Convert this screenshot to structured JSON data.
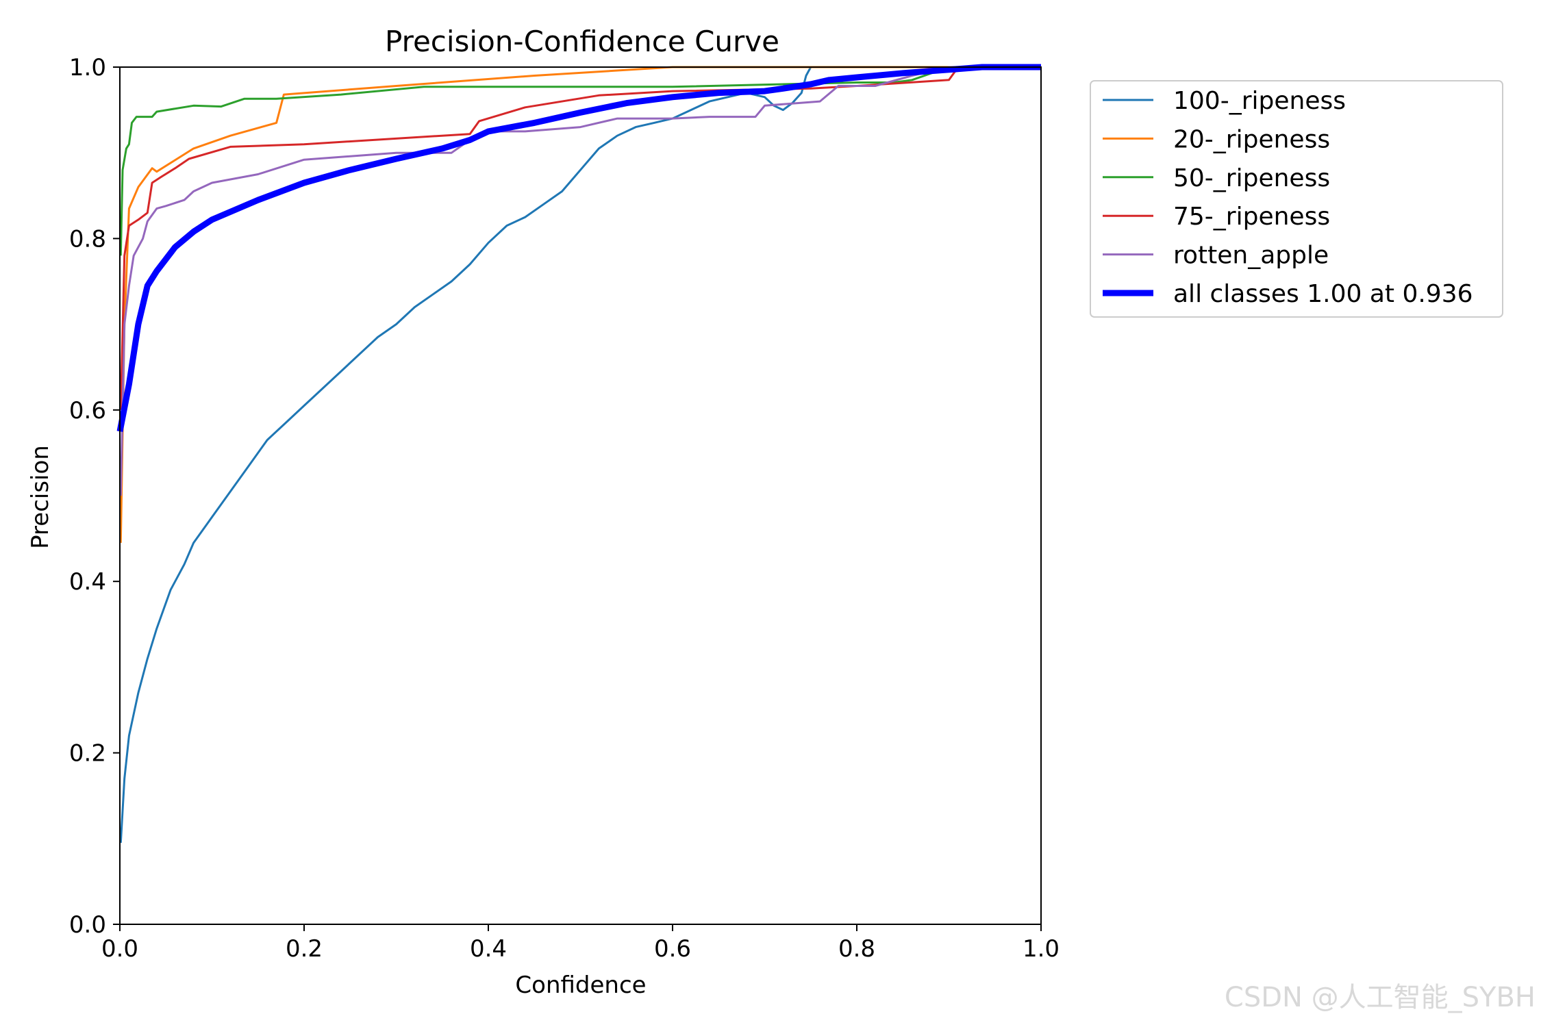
{
  "watermark": "CSDN @人工智能_SYBH",
  "chart_data": {
    "type": "line",
    "title": "Precision-Confidence Curve",
    "xlabel": "Confidence",
    "ylabel": "Precision",
    "xlim": [
      0,
      1
    ],
    "ylim": [
      0,
      1
    ],
    "xticks": [
      0.0,
      0.2,
      0.4,
      0.6,
      0.8,
      1.0
    ],
    "yticks": [
      0.0,
      0.2,
      0.4,
      0.6,
      0.8,
      1.0
    ],
    "xtick_labels": [
      "0.0",
      "0.2",
      "0.4",
      "0.6",
      "0.8",
      "1.0"
    ],
    "ytick_labels": [
      "0.0",
      "0.2",
      "0.4",
      "0.6",
      "0.8",
      "1.0"
    ],
    "grid": false,
    "legend_position": "outside-right-top",
    "series": [
      {
        "name": "100-_ripeness",
        "color": "#1f77b4",
        "width": 3,
        "points": [
          [
            0.001,
            0.095
          ],
          [
            0.005,
            0.17
          ],
          [
            0.01,
            0.22
          ],
          [
            0.02,
            0.27
          ],
          [
            0.03,
            0.31
          ],
          [
            0.04,
            0.345
          ],
          [
            0.055,
            0.39
          ],
          [
            0.07,
            0.42
          ],
          [
            0.08,
            0.445
          ],
          [
            0.1,
            0.475
          ],
          [
            0.12,
            0.505
          ],
          [
            0.14,
            0.535
          ],
          [
            0.16,
            0.565
          ],
          [
            0.18,
            0.585
          ],
          [
            0.2,
            0.605
          ],
          [
            0.22,
            0.625
          ],
          [
            0.24,
            0.645
          ],
          [
            0.26,
            0.665
          ],
          [
            0.28,
            0.685
          ],
          [
            0.3,
            0.7
          ],
          [
            0.32,
            0.72
          ],
          [
            0.34,
            0.735
          ],
          [
            0.36,
            0.75
          ],
          [
            0.38,
            0.77
          ],
          [
            0.4,
            0.795
          ],
          [
            0.42,
            0.815
          ],
          [
            0.44,
            0.825
          ],
          [
            0.46,
            0.84
          ],
          [
            0.48,
            0.855
          ],
          [
            0.5,
            0.88
          ],
          [
            0.52,
            0.905
          ],
          [
            0.54,
            0.92
          ],
          [
            0.56,
            0.93
          ],
          [
            0.58,
            0.935
          ],
          [
            0.6,
            0.94
          ],
          [
            0.62,
            0.95
          ],
          [
            0.64,
            0.96
          ],
          [
            0.66,
            0.965
          ],
          [
            0.68,
            0.97
          ],
          [
            0.7,
            0.965
          ],
          [
            0.71,
            0.955
          ],
          [
            0.72,
            0.95
          ],
          [
            0.73,
            0.958
          ],
          [
            0.74,
            0.97
          ],
          [
            0.745,
            0.99
          ],
          [
            0.75,
            1.0
          ],
          [
            1.0,
            1.0
          ]
        ]
      },
      {
        "name": "20-_ripeness",
        "color": "#ff7f0e",
        "width": 3,
        "points": [
          [
            0.001,
            0.445
          ],
          [
            0.005,
            0.7
          ],
          [
            0.01,
            0.835
          ],
          [
            0.02,
            0.86
          ],
          [
            0.035,
            0.882
          ],
          [
            0.04,
            0.878
          ],
          [
            0.08,
            0.905
          ],
          [
            0.12,
            0.92
          ],
          [
            0.17,
            0.935
          ],
          [
            0.178,
            0.968
          ],
          [
            0.3,
            0.978
          ],
          [
            0.45,
            0.99
          ],
          [
            0.6,
            1.0
          ],
          [
            1.0,
            1.0
          ]
        ]
      },
      {
        "name": "50-_ripeness",
        "color": "#2ca02c",
        "width": 3,
        "points": [
          [
            0.001,
            0.78
          ],
          [
            0.003,
            0.88
          ],
          [
            0.007,
            0.905
          ],
          [
            0.01,
            0.91
          ],
          [
            0.013,
            0.935
          ],
          [
            0.018,
            0.942
          ],
          [
            0.035,
            0.942
          ],
          [
            0.04,
            0.948
          ],
          [
            0.08,
            0.955
          ],
          [
            0.11,
            0.954
          ],
          [
            0.135,
            0.963
          ],
          [
            0.17,
            0.963
          ],
          [
            0.24,
            0.968
          ],
          [
            0.33,
            0.977
          ],
          [
            0.6,
            0.977
          ],
          [
            0.8,
            0.982
          ],
          [
            0.84,
            0.982
          ],
          [
            0.86,
            0.985
          ],
          [
            0.9,
            1.0
          ],
          [
            1.0,
            1.0
          ]
        ]
      },
      {
        "name": "75-_ripeness",
        "color": "#d62728",
        "width": 3,
        "points": [
          [
            0.001,
            0.6
          ],
          [
            0.005,
            0.78
          ],
          [
            0.01,
            0.815
          ],
          [
            0.02,
            0.822
          ],
          [
            0.03,
            0.83
          ],
          [
            0.035,
            0.865
          ],
          [
            0.045,
            0.872
          ],
          [
            0.06,
            0.882
          ],
          [
            0.075,
            0.893
          ],
          [
            0.12,
            0.907
          ],
          [
            0.2,
            0.91
          ],
          [
            0.38,
            0.922
          ],
          [
            0.39,
            0.937
          ],
          [
            0.44,
            0.953
          ],
          [
            0.52,
            0.967
          ],
          [
            0.6,
            0.972
          ],
          [
            0.75,
            0.975
          ],
          [
            0.8,
            0.978
          ],
          [
            0.9,
            0.985
          ],
          [
            0.91,
            1.0
          ],
          [
            1.0,
            1.0
          ]
        ]
      },
      {
        "name": "rotten_apple",
        "color": "#9467bd",
        "width": 3,
        "points": [
          [
            0.001,
            0.5
          ],
          [
            0.005,
            0.7
          ],
          [
            0.01,
            0.745
          ],
          [
            0.015,
            0.78
          ],
          [
            0.025,
            0.8
          ],
          [
            0.03,
            0.82
          ],
          [
            0.04,
            0.835
          ],
          [
            0.05,
            0.838
          ],
          [
            0.07,
            0.845
          ],
          [
            0.08,
            0.855
          ],
          [
            0.1,
            0.865
          ],
          [
            0.15,
            0.875
          ],
          [
            0.2,
            0.892
          ],
          [
            0.3,
            0.9
          ],
          [
            0.36,
            0.9
          ],
          [
            0.38,
            0.915
          ],
          [
            0.4,
            0.925
          ],
          [
            0.44,
            0.925
          ],
          [
            0.5,
            0.93
          ],
          [
            0.54,
            0.94
          ],
          [
            0.6,
            0.94
          ],
          [
            0.64,
            0.942
          ],
          [
            0.69,
            0.942
          ],
          [
            0.7,
            0.955
          ],
          [
            0.76,
            0.96
          ],
          [
            0.78,
            0.978
          ],
          [
            0.82,
            0.978
          ],
          [
            0.86,
            0.99
          ],
          [
            0.9,
            1.0
          ],
          [
            1.0,
            1.0
          ]
        ]
      },
      {
        "name": "all classes 1.00 at 0.936",
        "color": "#0000ff",
        "width": 9,
        "points": [
          [
            0.0,
            0.575
          ],
          [
            0.01,
            0.63
          ],
          [
            0.02,
            0.7
          ],
          [
            0.03,
            0.745
          ],
          [
            0.04,
            0.762
          ],
          [
            0.06,
            0.79
          ],
          [
            0.08,
            0.808
          ],
          [
            0.1,
            0.822
          ],
          [
            0.15,
            0.845
          ],
          [
            0.2,
            0.865
          ],
          [
            0.25,
            0.88
          ],
          [
            0.3,
            0.893
          ],
          [
            0.35,
            0.905
          ],
          [
            0.38,
            0.915
          ],
          [
            0.4,
            0.925
          ],
          [
            0.45,
            0.935
          ],
          [
            0.5,
            0.947
          ],
          [
            0.55,
            0.958
          ],
          [
            0.6,
            0.965
          ],
          [
            0.65,
            0.97
          ],
          [
            0.7,
            0.972
          ],
          [
            0.72,
            0.975
          ],
          [
            0.75,
            0.98
          ],
          [
            0.77,
            0.985
          ],
          [
            0.8,
            0.988
          ],
          [
            0.85,
            0.993
          ],
          [
            0.9,
            0.997
          ],
          [
            0.936,
            1.0
          ],
          [
            1.0,
            1.0
          ]
        ]
      }
    ]
  }
}
